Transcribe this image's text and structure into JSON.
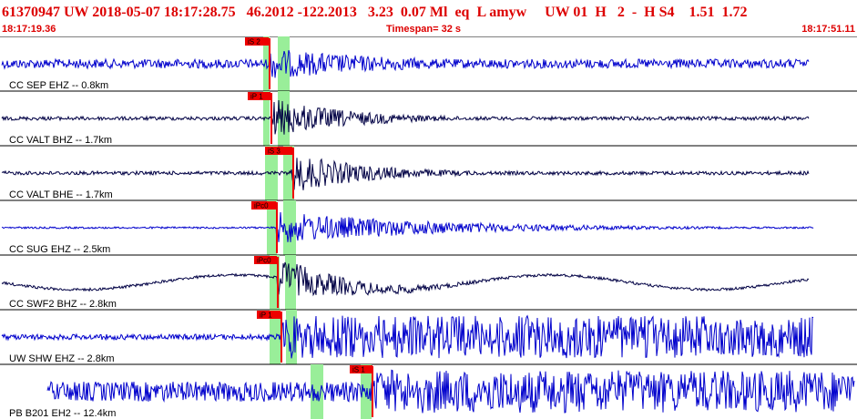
{
  "header": {
    "title": "61370947 UW 2018-05-07 18:17:28.75   46.2012 -122.2013   3.23  0.07 Ml  eq  L amyw     UW 01  H   2  -  H S4    1.51  1.72",
    "start_time": "18:17:19.36",
    "timespan": "Timespan=  32 s",
    "end_time": "18:17:51.11"
  },
  "colors": {
    "header_text": "#dd0000",
    "trace_blue": "#0000cc",
    "trace_black": "#000044",
    "pick_red": "#ee0000",
    "window_green": "#99ee99"
  },
  "traces": [
    {
      "label": "CC SEP EHZ -- 0.8km",
      "pick": "iS 2",
      "color": "blue"
    },
    {
      "label": "CC VALT BHZ -- 1.7km",
      "pick": "iP 1",
      "color": "black"
    },
    {
      "label": "CC VALT BHE -- 1.7km",
      "pick": "iS 3",
      "color": "black"
    },
    {
      "label": "CC SUG EHZ -- 2.5km",
      "pick": "iPc0",
      "color": "blue"
    },
    {
      "label": "CC SWF2 BHZ -- 2.8km",
      "pick": "iPc0",
      "color": "black"
    },
    {
      "label": "UW SHW EHZ -- 2.8km",
      "pick": "iP 1",
      "color": "blue"
    },
    {
      "label": "PB B201 EH2 -- 12.4km",
      "pick": "iS 1",
      "color": "blue"
    }
  ]
}
